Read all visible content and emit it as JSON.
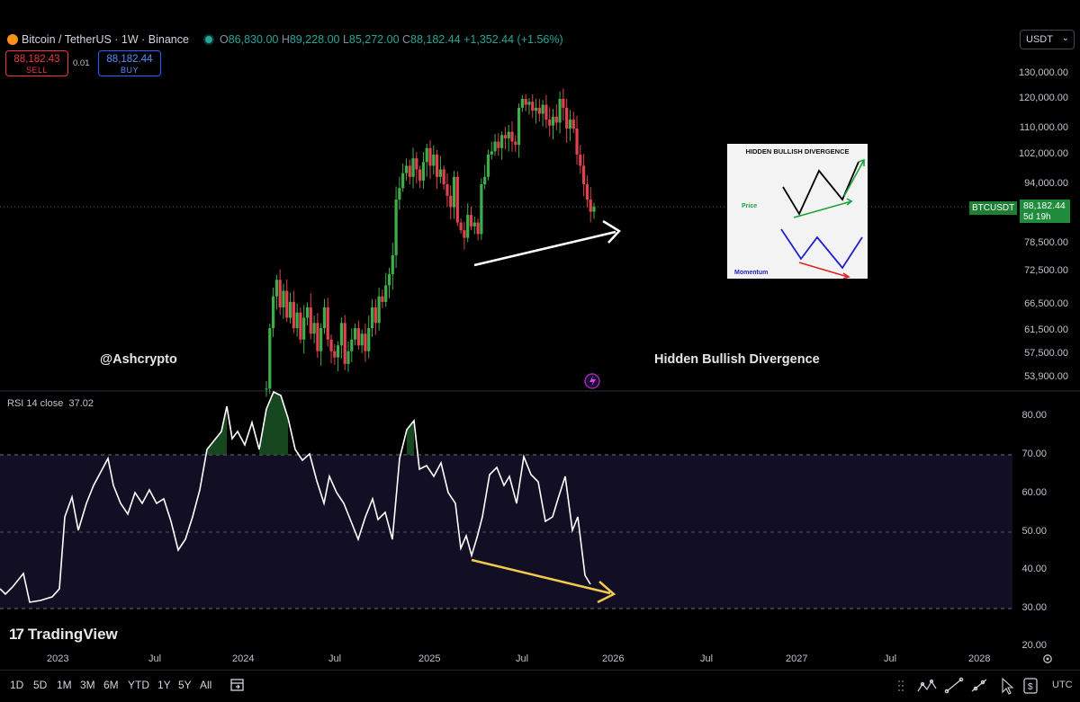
{
  "header": {
    "symbol_title": "Bitcoin / TetherUS · 1W · Binance",
    "ohlc": {
      "open_key": "O",
      "open": "86,830.00",
      "high_key": "H",
      "high": "89,228.00",
      "low_key": "L",
      "low": "85,272.00",
      "close_key": "C",
      "close": "88,182.44",
      "change": "+1,352.44 (+1.56%)"
    },
    "sell_price": "88,182.43",
    "sell_label": "SELL",
    "spread": "0.01",
    "buy_price": "88,182.44",
    "buy_label": "BUY",
    "currency": "USDT"
  },
  "price_axis": {
    "ticks": [
      "130,000.00",
      "120,000.00",
      "110,000.00",
      "102,000.00",
      "94,000.00",
      "78,500.00",
      "72,500.00",
      "66,500.00",
      "61,500.00",
      "57,500.00",
      "53,900.00"
    ]
  },
  "last_price_label": {
    "symbol": "BTCUSDT",
    "price": "88,182.44",
    "countdown": "5d 19h"
  },
  "rsi_axis": {
    "ticks": [
      "80.00",
      "70.00",
      "60.00",
      "50.00",
      "40.00",
      "30.00",
      "20.00"
    ]
  },
  "x_axis": {
    "ticks": [
      "2023",
      "Jul",
      "2024",
      "Jul",
      "2025",
      "Jul",
      "2026",
      "Jul",
      "2027",
      "Jul",
      "2028"
    ]
  },
  "annotations": {
    "handle": "@Ashcrypto",
    "divergence_label": "Hidden Bullish Divergence",
    "inset_title": "HIDDEN BULLISH DIVERGENCE",
    "inset_price": "Price",
    "inset_momentum": "Momentum"
  },
  "rsi_label": {
    "name": "RSI 14 close",
    "value": "37.02"
  },
  "branding": {
    "logo_text": "TradingView",
    "logo_mark": "17"
  },
  "bottom_bar": {
    "timeframes": [
      "1D",
      "5D",
      "1M",
      "3M",
      "6M",
      "YTD",
      "1Y",
      "5Y",
      "All"
    ],
    "timezone": "UTC"
  },
  "colors": {
    "up": "#26a69a",
    "candle_up": "#3fae4a",
    "candle_down": "#e0424f",
    "rsi_line": "#ffffff",
    "arrow_price": "#ffffff",
    "arrow_rsi": "#f2c94c"
  },
  "chart_data": [
    {
      "type": "candlestick",
      "title": "Bitcoin / TetherUS · 1W · Binance",
      "series": [
        {
          "dates": [
            "2024-02",
            "2024-03",
            "2024-04",
            "2024-05",
            "2024-06",
            "2024-07",
            "2024-08",
            "2024-09",
            "2024-10",
            "2024-11",
            "2024-12",
            "2025-01",
            "2025-02",
            "2025-03",
            "2025-04",
            "2025-05",
            "2025-06",
            "2025-07",
            "2025-08",
            "2025-09",
            "2025-10",
            "2025-11"
          ],
          "close": [
            60000,
            70000,
            63000,
            68000,
            62000,
            67000,
            59000,
            64000,
            70000,
            97000,
            95000,
            102000,
            84000,
            82000,
            94000,
            104000,
            107000,
            118000,
            110000,
            114000,
            110000,
            88182
          ]
        }
      ]
    },
    {
      "type": "line",
      "title": "RSI 14 close",
      "x": [
        "2022-11",
        "2023-01",
        "2023-03",
        "2023-05",
        "2023-07",
        "2023-09",
        "2023-11",
        "2024-01",
        "2024-03",
        "2024-05",
        "2024-07",
        "2024-09",
        "2024-11",
        "2025-01",
        "2025-03",
        "2025-05",
        "2025-07",
        "2025-09",
        "2025-11"
      ],
      "values": [
        36,
        33,
        58,
        62,
        67,
        52,
        70,
        80,
        82,
        62,
        60,
        52,
        78,
        66,
        44,
        68,
        70,
        56,
        37
      ],
      "ylim": [
        20,
        85
      ]
    }
  ]
}
